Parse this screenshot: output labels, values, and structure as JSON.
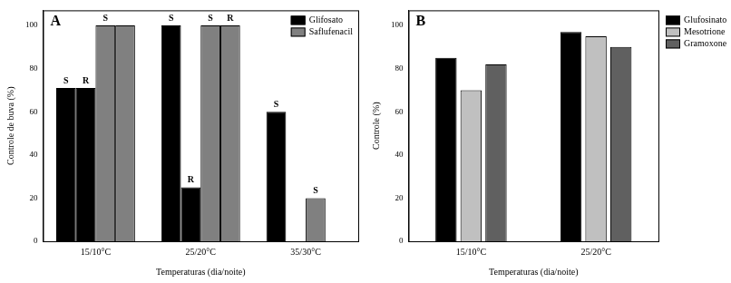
{
  "chart_data": [
    {
      "type": "bar",
      "title": "A",
      "x_label": "Temperaturas (dia/noite)",
      "y_label": "Controle de buva (%)",
      "categories": [
        "15/10°C",
        "25/20°C",
        "35/30°C"
      ],
      "series": [
        {
          "name": "Glifosato",
          "color": "#000000",
          "values": [
            71,
            100,
            60
          ],
          "annotations": [
            "S",
            "S",
            "S"
          ]
        },
        {
          "name": "Glifosato",
          "color": "#000000",
          "values": [
            71,
            25,
            null
          ],
          "annotations": [
            "R",
            "R",
            null
          ]
        },
        {
          "name": "Saflufenacil",
          "color": "#808080",
          "values": [
            100,
            100,
            20
          ],
          "annotations": [
            "S",
            "S",
            "S"
          ]
        },
        {
          "name": "Saflufenacil",
          "color": "#808080",
          "values": [
            100,
            100,
            null
          ],
          "annotations": [
            null,
            "R",
            null
          ]
        }
      ],
      "ylim": [
        0,
        107
      ],
      "yticks": [
        0,
        20,
        40,
        60,
        80,
        100
      ],
      "grid": false,
      "legend": "upper right"
    },
    {
      "type": "bar",
      "title": "B",
      "x_label": "Temperaturas (dia/noite)",
      "y_label": "Controle (%)",
      "categories": [
        "15/10°C",
        "25/20°C"
      ],
      "series": [
        {
          "name": "Glufosinato",
          "color": "#000000",
          "values": [
            85,
            97
          ]
        },
        {
          "name": "Mesotrione",
          "color": "#c0c0c0",
          "values": [
            70,
            95
          ]
        },
        {
          "name": "Gramoxone",
          "color": "#606060",
          "values": [
            82,
            90
          ]
        }
      ],
      "ylim": [
        0,
        107
      ],
      "yticks": [
        0,
        20,
        40,
        60,
        80,
        100
      ],
      "grid": false,
      "legend": "right"
    }
  ]
}
